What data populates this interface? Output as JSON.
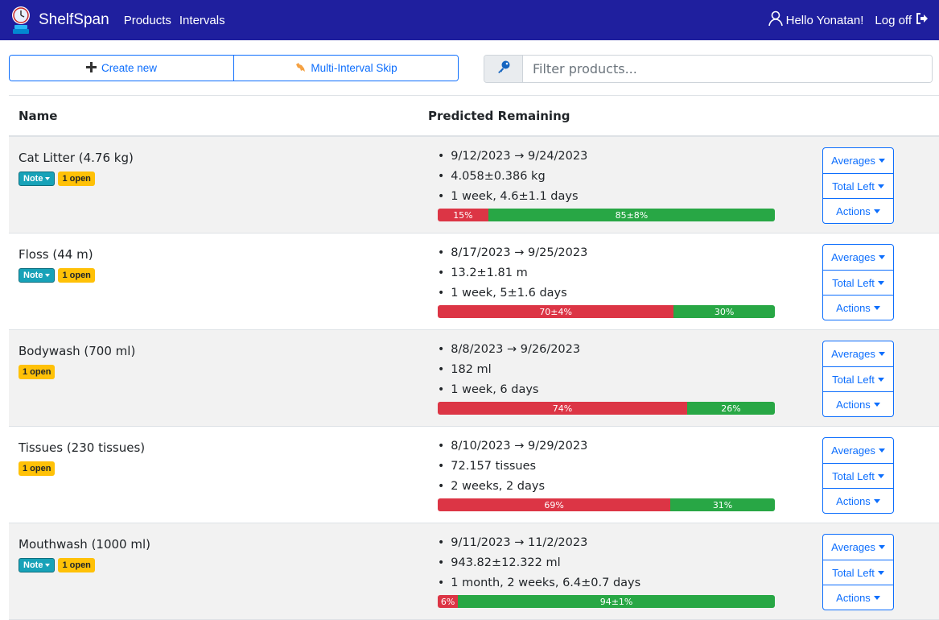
{
  "nav": {
    "brand": "ShelfSpan",
    "links": [
      "Products",
      "Intervals"
    ],
    "greeting": "Hello Yonatan!",
    "logoff": "Log off"
  },
  "toolbar": {
    "create_label": "Create new",
    "skip_label": "Multi-Interval Skip",
    "search_placeholder": "Filter products..."
  },
  "table": {
    "headers": [
      "Name",
      "Predicted Remaining"
    ],
    "action_labels": [
      "Averages",
      "Total Left",
      "Actions"
    ],
    "note_label": "Note",
    "rows": [
      {
        "name": "Cat Litter (4.76 kg)",
        "note": true,
        "open": "1 open",
        "range": "9/12/2023 → 9/24/2023",
        "amount": "4.058±0.386 kg",
        "duration": "1 week, 4.6±1.1 days",
        "used": 15,
        "used_label": "15%",
        "left_label": "85±8%"
      },
      {
        "name": "Floss (44 m)",
        "note": true,
        "open": "1 open",
        "range": "8/17/2023 → 9/25/2023",
        "amount": "13.2±1.81 m",
        "duration": "1 week, 5±1.6 days",
        "used": 70,
        "used_label": "70±4%",
        "left_label": "30%"
      },
      {
        "name": "Bodywash (700 ml)",
        "note": false,
        "open": "1 open",
        "range": "8/8/2023 → 9/26/2023",
        "amount": "182 ml",
        "duration": "1 week, 6 days",
        "used": 74,
        "used_label": "74%",
        "left_label": "26%"
      },
      {
        "name": "Tissues (230 tissues)",
        "note": false,
        "open": "1 open",
        "range": "8/10/2023 → 9/29/2023",
        "amount": "72.157 tissues",
        "duration": "2 weeks, 2 days",
        "used": 69,
        "used_label": "69%",
        "left_label": "31%"
      },
      {
        "name": "Mouthwash (1000 ml)",
        "note": true,
        "open": "1 open",
        "range": "9/11/2023 → 11/2/2023",
        "amount": "943.82±12.322 ml",
        "duration": "1 month, 2 weeks, 6.4±0.7 days",
        "used": 6,
        "used_label": "6%",
        "left_label": "94±1%"
      }
    ]
  },
  "icons": {
    "logo": "clock-logo-icon",
    "user": "user-icon",
    "logoff": "sign-out-icon",
    "create": "plus-icon",
    "skip": "kangaroo-icon",
    "search": "key-icon"
  },
  "colors": {
    "navbar": "#1f1f9e",
    "primary": "#0d6efd",
    "used": "#dc3545",
    "left": "#28a745",
    "note_badge": "#17a2b8",
    "open_badge": "#ffc107"
  }
}
